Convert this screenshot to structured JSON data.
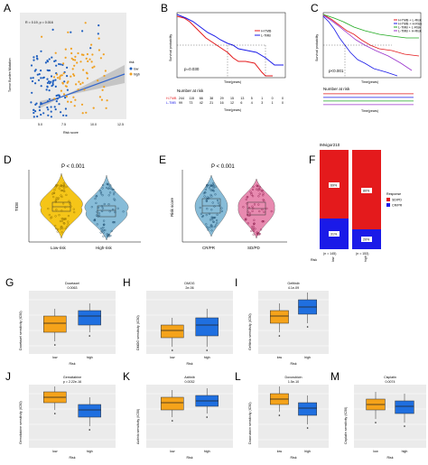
{
  "panels": {
    "A": {
      "letter": "A",
      "stat": "R = 0.19, p = 0.016",
      "ylabel": "Tumor Burden Mutation",
      "xlabel": "Risk score",
      "legend_title": "risk",
      "legend": [
        "low",
        "high"
      ],
      "xticks": [
        "5.0",
        "7.5",
        "10.0",
        "12.5"
      ]
    },
    "B": {
      "letter": "B",
      "pval": "p=0.030",
      "ylabel": "Survival probability",
      "xlabel": "Time(years)",
      "legend": [
        "H-TMB",
        "L-TMB"
      ],
      "risk_title": "Number at risk",
      "risk_rows": [
        [
          "244",
          "115",
          "66",
          "38",
          "29",
          "15",
          "13",
          "5",
          "1",
          "0",
          "0"
        ],
        [
          "99",
          "73",
          "42",
          "21",
          "16",
          "12",
          "6",
          "4",
          "3",
          "1",
          "0"
        ]
      ],
      "row_labels": [
        "H-TMB",
        "L-TMB"
      ],
      "xlabel2": "Time(years)"
    },
    "C": {
      "letter": "C",
      "pval": "p<0.001",
      "ylabel": "Survival probability",
      "xlabel": "Time(years)",
      "legend": [
        "H-TMB + L-Risk",
        "H-TMB + H-Risk",
        "L-TMB + L-Risk",
        "L-TMB + H-Risk"
      ],
      "risk_title": "Number at risk",
      "xlabel2": "Time(years)"
    },
    "D": {
      "letter": "D",
      "pval": "P < 0.001",
      "ylabel": "TIDE",
      "xcats": [
        "Low-risk",
        "High-risk"
      ]
    },
    "E": {
      "letter": "E",
      "pval": "P < 0.001",
      "ylabel": "Risk score",
      "xcats": [
        "CR/PR",
        "SD/PD"
      ]
    },
    "F": {
      "letter": "F",
      "title": "IMvigor210",
      "legend_title": "Response",
      "legend": [
        "SD/PD",
        "CR/PR"
      ],
      "bars": [
        {
          "top": "69%",
          "bottom": "31%",
          "n": "(n = 145)",
          "label": "low"
        },
        {
          "top": "80%",
          "bottom": "20%",
          "n": "(n = 153)",
          "label": "high"
        }
      ],
      "xlabel": "Risk"
    },
    "G": {
      "letter": "G",
      "drug": "Docetaxel",
      "stat": "0.0063",
      "ylabel": "Docetaxel sensitivity (IC50)"
    },
    "H": {
      "letter": "H",
      "drug": "DMOG",
      "stat": "2e-06",
      "ylabel": "DMOG sensitivity (IC50)"
    },
    "I": {
      "letter": "I",
      "drug": "Gefitinib",
      "stat": "4.1e-09",
      "ylabel": "Gefitinib sensitivity (IC50)"
    },
    "J": {
      "letter": "J",
      "drug": "Gemcitabine",
      "stat": "p = 2.22e-16",
      "ylabel": "Gemcitabine sensitivity (IC50)"
    },
    "K": {
      "letter": "K",
      "drug": "Axitinib",
      "stat": "0.0032",
      "ylabel": "Axitinib sensitivity (IC50)"
    },
    "L": {
      "letter": "L",
      "drug": "Doxorubicin",
      "stat": "1.5e-10",
      "ylabel": "Doxorubicin sensitivity (IC50)"
    },
    "M": {
      "letter": "M",
      "drug": "Cisplatin",
      "stat": "0.0074",
      "ylabel": "Cisplatin sensitivity (IC50)"
    }
  },
  "box_common": {
    "xcats": [
      "low",
      "high"
    ],
    "xlabel": "Risk"
  },
  "colors": {
    "low": "#1f5fbf",
    "high": "#f0a020",
    "red": "#e41a1c",
    "blue": "#1a1ae8",
    "orange": "#f5a31a",
    "boxblue": "#1f6fe0",
    "violet": "#87bcd8",
    "pink": "#e88ab0"
  }
}
